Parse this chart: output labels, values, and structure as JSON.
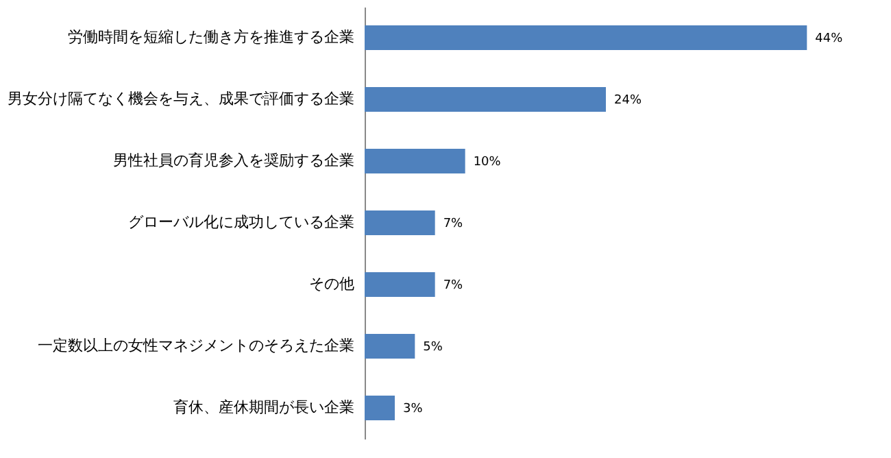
{
  "chart_data": {
    "type": "bar",
    "orientation": "horizontal",
    "categories": [
      "労働時間を短縮した働き方を推進する企業",
      "男女分け隔てなく機会を与え、成果で評価する企業",
      "男性社員の育児参入を奨励する企業",
      "グローバル化に成功している企業",
      "その他",
      "一定数以上の女性マネジメントのそろえた企業",
      "育休、産休期間が長い企業"
    ],
    "values": [
      44,
      24,
      10,
      7,
      7,
      5,
      3
    ],
    "value_labels": [
      "44%",
      "24%",
      "10%",
      "7%",
      "7%",
      "5%",
      "3%"
    ],
    "color": "#4f81bd",
    "grid": false,
    "tick_labels": "y"
  }
}
